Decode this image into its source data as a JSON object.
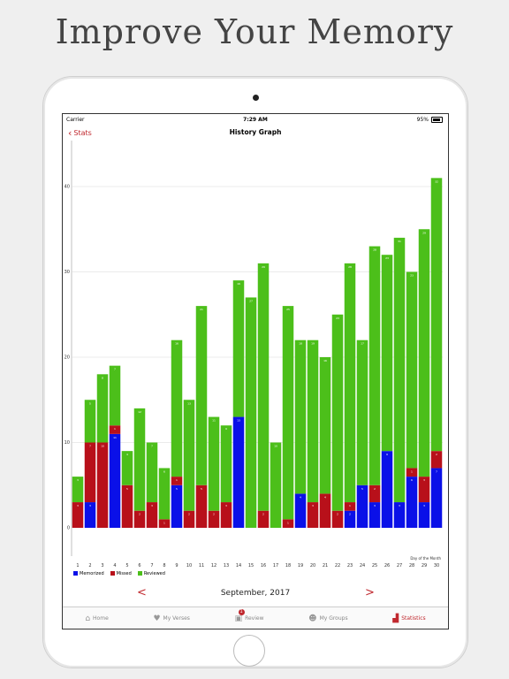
{
  "promo": {
    "headline": "Improve Your Memory"
  },
  "status_bar": {
    "carrier": "Carrier",
    "time": "7:29 AM",
    "battery": "95%"
  },
  "nav": {
    "back_label": "Stats",
    "title": "History Graph"
  },
  "chart_data": {
    "type": "bar",
    "stacked": true,
    "xlabel": "Day of the Month",
    "ylim": [
      0,
      45
    ],
    "yticks": [
      0,
      10,
      20,
      30,
      40
    ],
    "grid": true,
    "legend_position": "bottom-left",
    "categories": [
      1,
      2,
      3,
      4,
      5,
      6,
      7,
      8,
      9,
      10,
      11,
      12,
      13,
      14,
      15,
      16,
      17,
      18,
      19,
      20,
      21,
      22,
      23,
      24,
      25,
      26,
      27,
      28,
      29,
      30
    ],
    "series": [
      {
        "name": "Memorized",
        "color": "#0a10e8",
        "values": [
          0,
          3,
          0,
          11,
          0,
          0,
          0,
          0,
          5,
          0,
          0,
          0,
          0,
          13,
          0,
          0,
          0,
          0,
          4,
          0,
          0,
          0,
          2,
          5,
          3,
          9,
          3,
          6,
          3,
          7
        ]
      },
      {
        "name": "Missed",
        "color": "#b8101a",
        "values": [
          3,
          7,
          10,
          1,
          5,
          2,
          3,
          1,
          1,
          2,
          5,
          2,
          3,
          0,
          0,
          2,
          0,
          1,
          0,
          3,
          4,
          2,
          1,
          0,
          2,
          0,
          0,
          1,
          3,
          2
        ]
      },
      {
        "name": "Reviewed",
        "color": "#4cbf1a",
        "values": [
          3,
          5,
          8,
          7,
          4,
          12,
          7,
          6,
          16,
          13,
          21,
          11,
          9,
          16,
          27,
          29,
          10,
          25,
          18,
          19,
          16,
          23,
          28,
          17,
          28,
          23,
          31,
          23,
          29,
          32
        ]
      }
    ]
  },
  "footer": {
    "month": "September, 2017",
    "prev": "<",
    "next": ">"
  },
  "tabs": [
    {
      "label": "Home",
      "icon": "house-icon",
      "glyph": "⌂"
    },
    {
      "label": "My Verses",
      "icon": "heart-book-icon",
      "glyph": "♥"
    },
    {
      "label": "Review",
      "icon": "review-icon",
      "glyph": "▣",
      "badge": "1"
    },
    {
      "label": "My Groups",
      "icon": "people-icon",
      "glyph": "☻"
    },
    {
      "label": "Statistics",
      "icon": "chart-icon",
      "glyph": "▟"
    }
  ]
}
